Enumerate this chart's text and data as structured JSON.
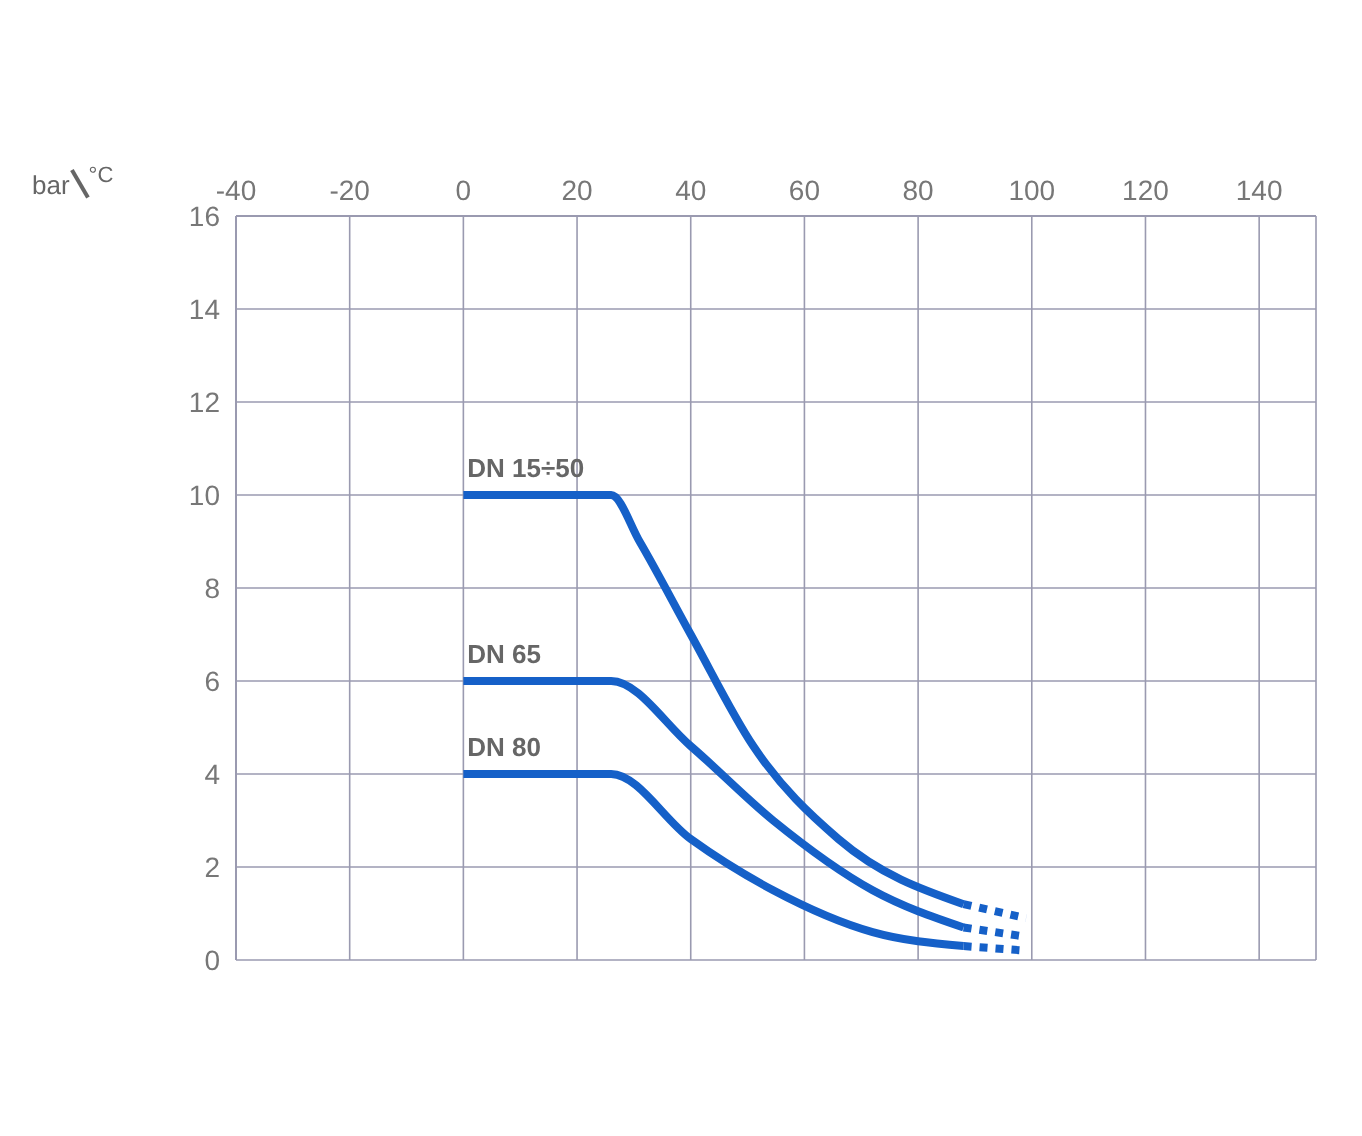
{
  "chart_data": {
    "type": "line",
    "xlabel": "°C",
    "ylabel": "bar",
    "xlim": [
      -40,
      150
    ],
    "xticks": [
      -40,
      -20,
      0,
      20,
      40,
      60,
      80,
      100,
      120,
      140
    ],
    "ylim": [
      0,
      16
    ],
    "yticks": [
      0,
      2,
      4,
      6,
      8,
      10,
      12,
      14,
      16
    ],
    "grid": true,
    "legend": false,
    "marker": "none",
    "line_style": "solid",
    "series": [
      {
        "name": "DN 15÷50",
        "color": "#1560c8",
        "x": [
          0,
          26,
          31,
          40,
          51,
          66,
          88
        ],
        "values": [
          10,
          10,
          9,
          7,
          4.6,
          2.6,
          1.2
        ]
      },
      {
        "name": "DN 65",
        "color": "#1560c8",
        "x": [
          0,
          26,
          40,
          54.5,
          72,
          88
        ],
        "values": [
          6,
          6,
          4.6,
          3,
          1.5,
          0.7
        ]
      },
      {
        "name": "DN 80",
        "color": "#1560c8",
        "x": [
          0,
          26,
          40,
          54.5,
          72,
          88
        ],
        "values": [
          4,
          4,
          2.6,
          1.5,
          0.6,
          0.3
        ]
      },
      {
        "color": "#1560c8",
        "line_style": "dotted",
        "x": [
          88,
          99
        ],
        "values": [
          1.2,
          0.9
        ]
      },
      {
        "color": "#1560c8",
        "line_style": "dotted",
        "x": [
          88,
          99
        ],
        "values": [
          0.7,
          0.5
        ]
      },
      {
        "color": "#1560c8",
        "line_style": "dotted",
        "x": [
          88,
          99
        ],
        "values": [
          0.3,
          0.2
        ]
      }
    ]
  }
}
